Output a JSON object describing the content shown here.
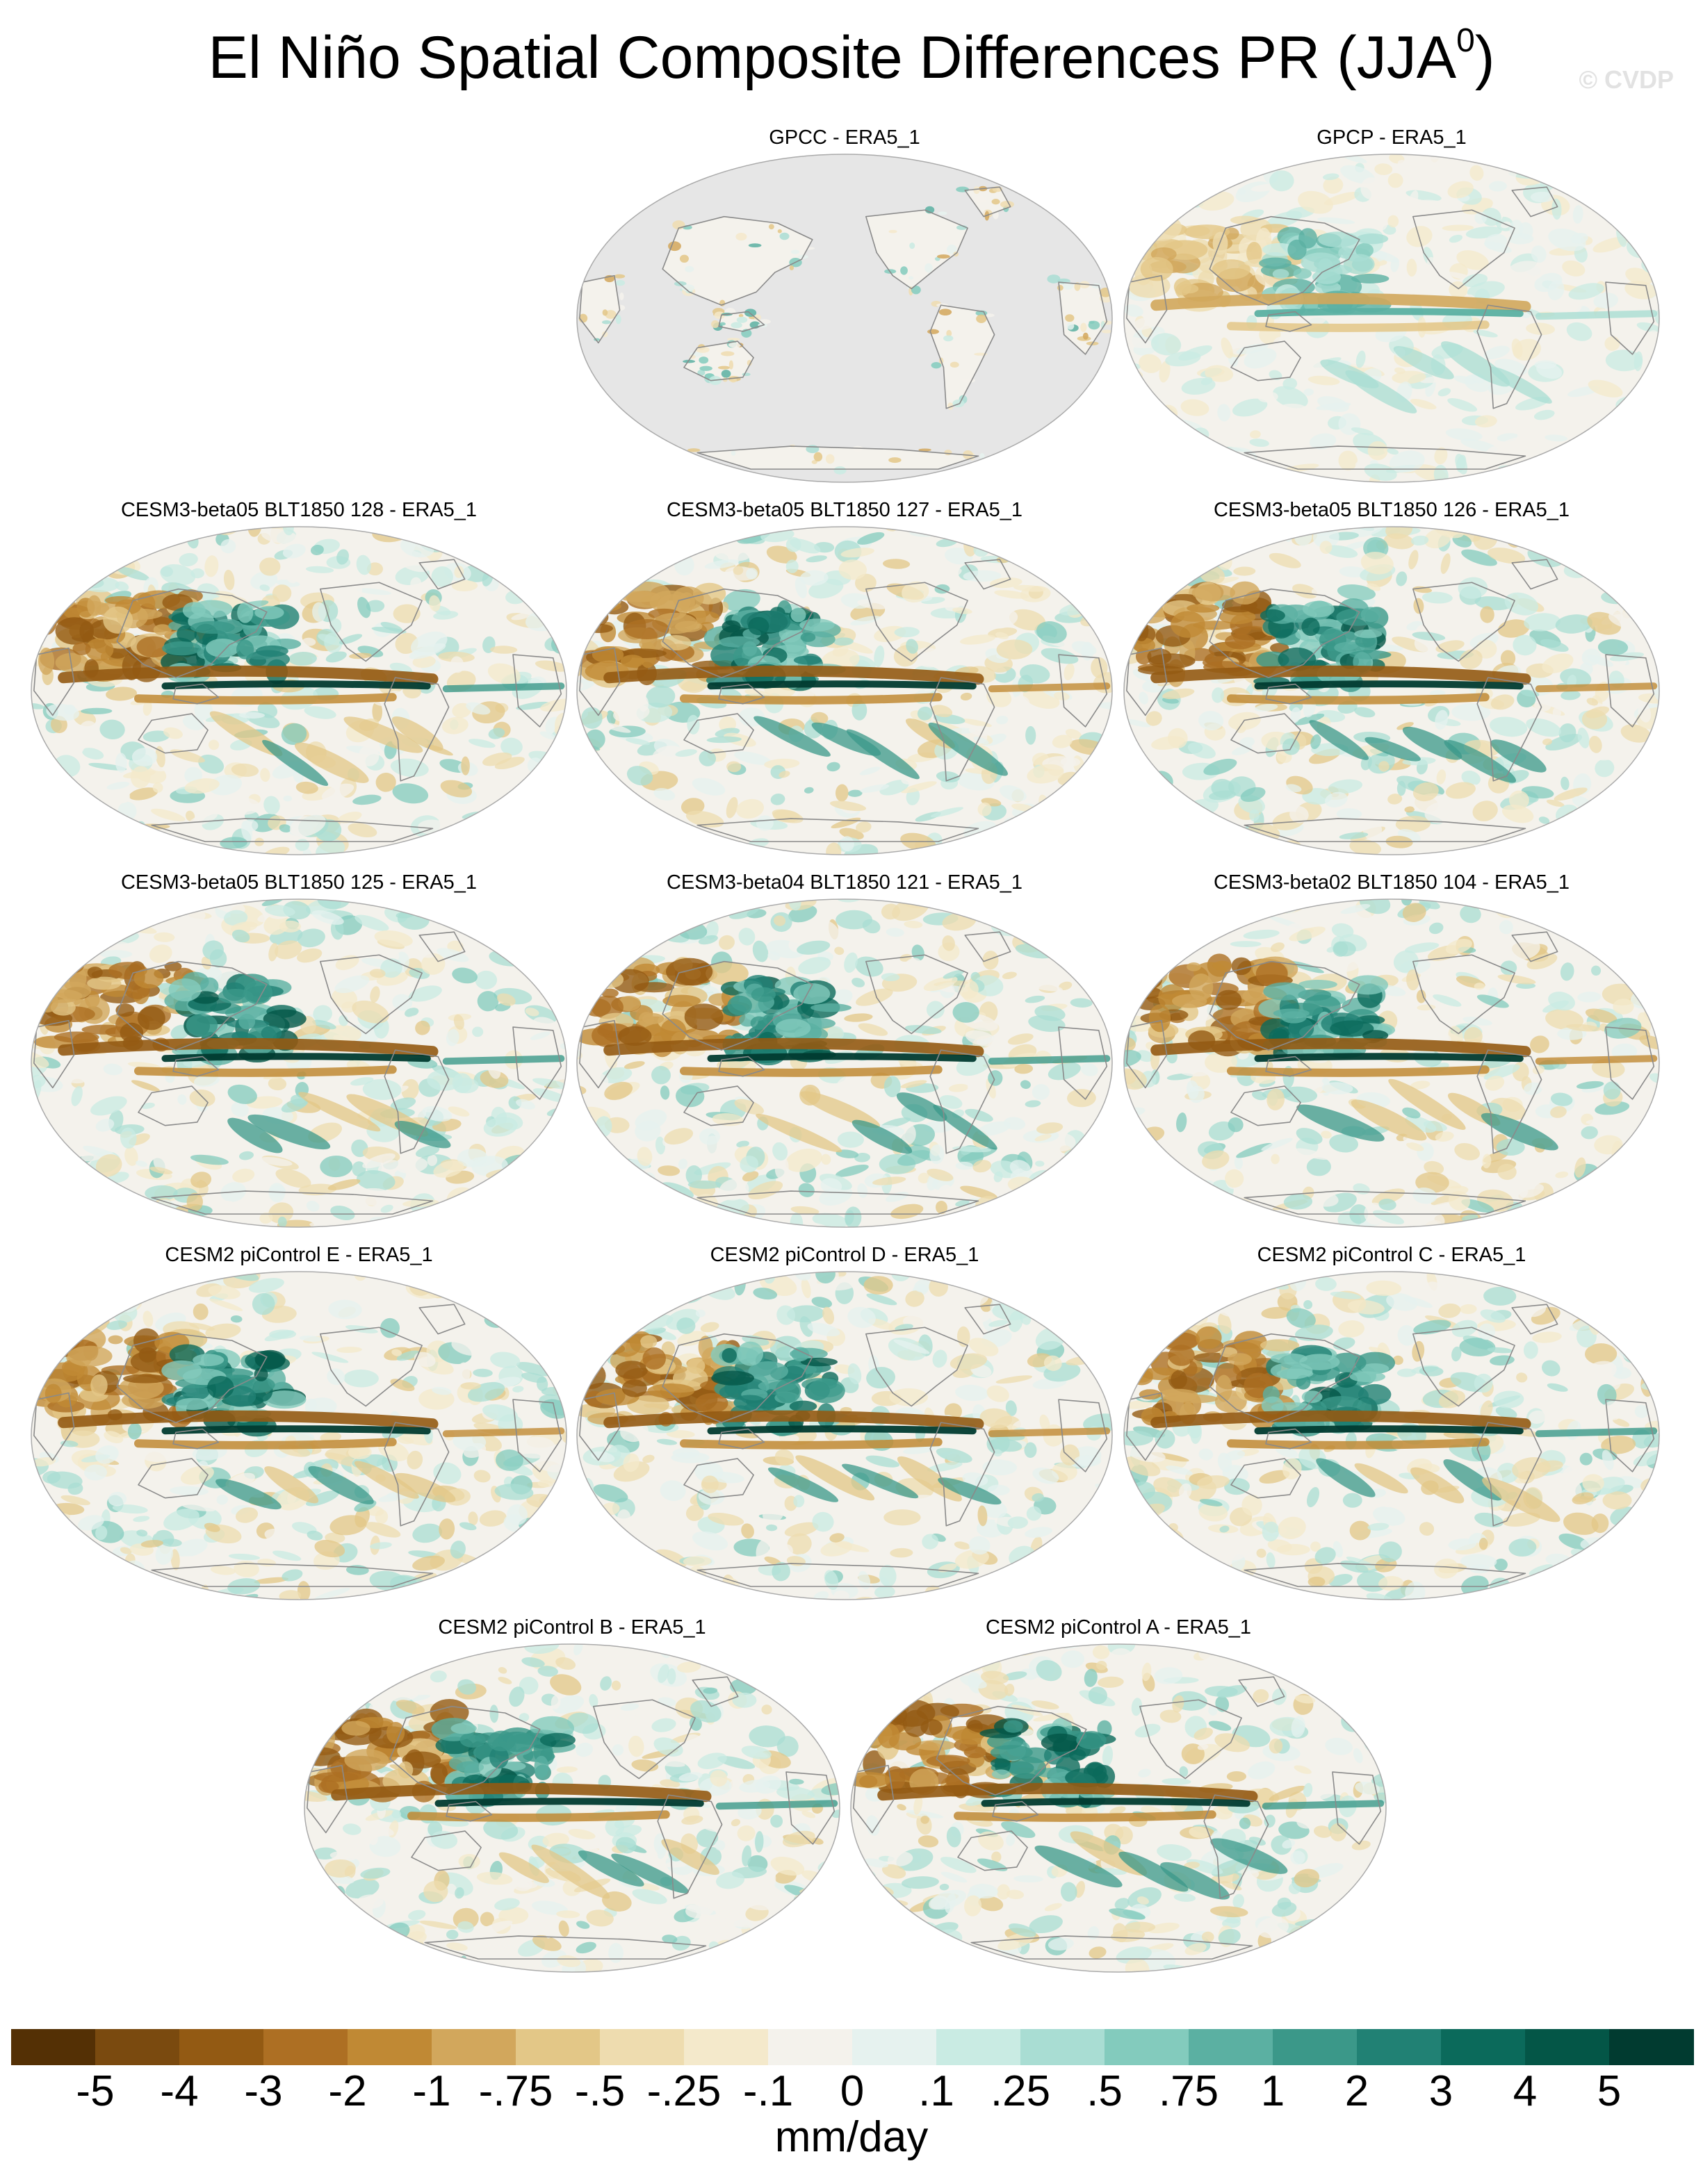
{
  "title": {
    "main": "El Niño Spatial Composite Differences PR (JJA",
    "superscript": "0",
    "close": ")"
  },
  "watermark": "© CVDP",
  "panels": [
    {
      "title": "GPCC - ERA5_1",
      "kind": "land-only",
      "seed": 11
    },
    {
      "title": "GPCP - ERA5_1",
      "kind": "obs",
      "seed": 23
    },
    {
      "title": "CESM3-beta05 BLT1850 128 - ERA5_1",
      "kind": "model",
      "seed": 37
    },
    {
      "title": "CESM3-beta05 BLT1850 127 - ERA5_1",
      "kind": "model",
      "seed": 41
    },
    {
      "title": "CESM3-beta05 BLT1850 126 - ERA5_1",
      "kind": "model",
      "seed": 53
    },
    {
      "title": "CESM3-beta05 BLT1850 125 - ERA5_1",
      "kind": "model",
      "seed": 61
    },
    {
      "title": "CESM3-beta04 BLT1850 121 - ERA5_1",
      "kind": "model",
      "seed": 73
    },
    {
      "title": "CESM3-beta02 BLT1850 104 - ERA5_1",
      "kind": "model",
      "seed": 89
    },
    {
      "title": "CESM2 piControl E - ERA5_1",
      "kind": "model",
      "seed": 97
    },
    {
      "title": "CESM2 piControl D - ERA5_1",
      "kind": "model",
      "seed": 103
    },
    {
      "title": "CESM2 piControl C - ERA5_1",
      "kind": "model",
      "seed": 113
    },
    {
      "title": "CESM2 piControl B - ERA5_1",
      "kind": "model",
      "seed": 127
    },
    {
      "title": "CESM2 piControl A - ERA5_1",
      "kind": "model",
      "seed": 131
    }
  ],
  "colorbar": {
    "labels": [
      "-5",
      "-4",
      "-3",
      "-2",
      "-1",
      "-.75",
      "-.5",
      "-.25",
      "-.1",
      "0",
      ".1",
      ".25",
      ".5",
      ".75",
      "1",
      "2",
      "3",
      "4",
      "5"
    ],
    "colors": [
      "#543005",
      "#7a4a0f",
      "#935a13",
      "#ad6f23",
      "#c08934",
      "#d2a75c",
      "#e3c787",
      "#eedcaf",
      "#f4e9cb",
      "#f4f2ec",
      "#e6f2ef",
      "#c9ebe3",
      "#a9ddd3",
      "#83cbbd",
      "#5bb0a2",
      "#3b9889",
      "#218174",
      "#0b6a5b",
      "#045647",
      "#013b30"
    ],
    "units": "mm/day"
  },
  "map_style": {
    "ocean": "#f4f2ec",
    "missing": "#e6e6e6",
    "coast": "#8a8a8a",
    "border": "#aaaaaa"
  }
}
